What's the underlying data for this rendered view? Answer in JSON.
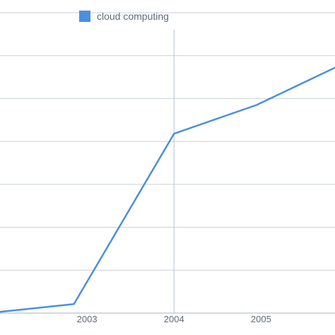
{
  "chart_data": {
    "type": "line",
    "x": [
      2002.0,
      2002.85,
      2004.0,
      2004.95,
      2005.85
    ],
    "series": [
      {
        "name": "cloud computing",
        "color": "#4a8fe0",
        "values": [
          0.3,
          2.1,
          41.8,
          48.5,
          57.2
        ]
      }
    ],
    "x_ticks": [
      {
        "value": 2003,
        "label": "2003"
      },
      {
        "value": 2004,
        "label": "2004"
      },
      {
        "value": 2005,
        "label": "2005"
      }
    ],
    "xlim": [
      2002.0,
      2005.85
    ],
    "ylim": [
      0,
      70
    ],
    "y_gridlines": [
      10,
      20,
      30,
      40,
      50,
      60,
      70
    ],
    "highlight_x": 2004,
    "grid": true,
    "legend": "top-left"
  }
}
